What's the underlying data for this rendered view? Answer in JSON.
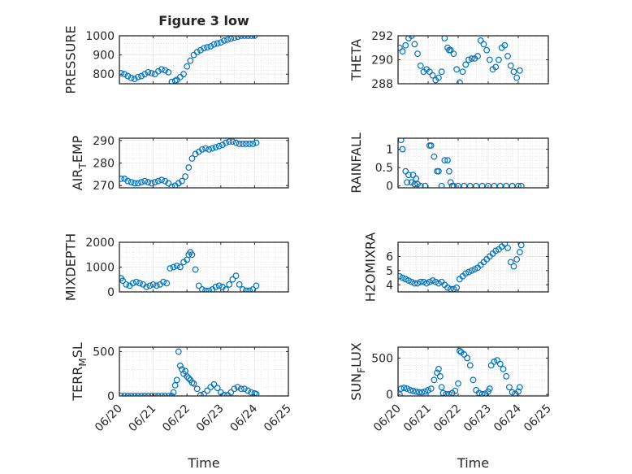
{
  "figure": {
    "title": "Figure 3 low"
  },
  "chart_data": [
    {
      "type": "scatter",
      "position": "top-left",
      "ylabel": "PRESSURE",
      "ylim": [
        750,
        1000
      ],
      "yticks": [
        800,
        900,
        1000
      ],
      "xlim": [
        0,
        5
      ],
      "color": "#0072BD",
      "x": [
        0.05,
        0.15,
        0.25,
        0.35,
        0.45,
        0.55,
        0.65,
        0.75,
        0.85,
        0.95,
        1.05,
        1.15,
        1.25,
        1.35,
        1.45,
        1.55,
        1.65,
        1.7,
        1.8,
        1.9,
        2.0,
        2.1,
        2.2,
        2.3,
        2.4,
        2.5,
        2.6,
        2.7,
        2.8,
        2.9,
        3.0,
        3.1,
        3.2,
        3.3,
        3.4,
        3.5,
        3.6,
        3.7,
        3.8,
        3.9,
        4.0
      ],
      "y": [
        805,
        800,
        790,
        780,
        775,
        785,
        790,
        800,
        810,
        805,
        800,
        815,
        825,
        820,
        810,
        760,
        765,
        770,
        785,
        800,
        840,
        870,
        900,
        915,
        925,
        935,
        940,
        945,
        955,
        960,
        965,
        975,
        980,
        985,
        990,
        995,
        1000,
        1000,
        1000,
        1000,
        1000
      ]
    },
    {
      "type": "scatter",
      "position": "top-right",
      "ylabel": "THETA",
      "ylim": [
        288,
        292
      ],
      "yticks": [
        288,
        290,
        292
      ],
      "xlim": [
        0,
        5
      ],
      "color": "#0072BD",
      "x": [
        0.05,
        0.15,
        0.25,
        0.35,
        0.45,
        0.55,
        0.65,
        0.75,
        0.85,
        0.95,
        1.05,
        1.15,
        1.25,
        1.35,
        1.45,
        1.55,
        1.65,
        1.7,
        1.75,
        1.85,
        1.95,
        2.05,
        2.15,
        2.25,
        2.35,
        2.45,
        2.55,
        2.65,
        2.75,
        2.85,
        2.95,
        3.05,
        3.15,
        3.25,
        3.35,
        3.45,
        3.55,
        3.65,
        3.75,
        3.85,
        3.95,
        4.05
      ],
      "y": [
        291,
        290.7,
        291.2,
        291.8,
        292,
        291.3,
        290.5,
        289.5,
        289,
        289.2,
        289,
        288.7,
        288.3,
        288.5,
        289,
        291.8,
        291,
        290.8,
        290.8,
        290.5,
        289.2,
        288.1,
        289,
        289.6,
        290,
        290.1,
        290.1,
        290.3,
        291.6,
        291.3,
        290.8,
        290,
        289.2,
        289.4,
        290,
        291,
        291.2,
        290.3,
        289.5,
        289,
        288.5,
        289.1
      ]
    },
    {
      "type": "scatter",
      "position": "second-left",
      "ylabel": "AIR_TEMP",
      "ylim": [
        269,
        291
      ],
      "yticks": [
        270,
        280,
        290
      ],
      "xlim": [
        0,
        5
      ],
      "color": "#0072BD",
      "x": [
        0.05,
        0.15,
        0.25,
        0.35,
        0.45,
        0.55,
        0.65,
        0.75,
        0.85,
        0.95,
        1.05,
        1.15,
        1.25,
        1.35,
        1.45,
        1.55,
        1.65,
        1.75,
        1.85,
        1.95,
        2.05,
        2.15,
        2.25,
        2.35,
        2.45,
        2.55,
        2.65,
        2.75,
        2.85,
        2.95,
        3.05,
        3.15,
        3.25,
        3.35,
        3.45,
        3.55,
        3.65,
        3.75,
        3.85,
        3.95,
        4.05
      ],
      "y": [
        273,
        273,
        272,
        271.5,
        271,
        271,
        271.5,
        272,
        271.5,
        271,
        271.5,
        272,
        272.5,
        272,
        271,
        269.5,
        270,
        271,
        272,
        274,
        278,
        282,
        284,
        285,
        286,
        286.5,
        286,
        286.5,
        287,
        287.5,
        288,
        289,
        289.5,
        289.5,
        289,
        288.5,
        288.5,
        288.5,
        288.5,
        288.5,
        289
      ]
    },
    {
      "type": "scatter",
      "position": "second-right",
      "ylabel": "RAINFALL",
      "ylim": [
        -0.05,
        1.3
      ],
      "yticks": [
        0,
        0.5,
        1
      ],
      "xlim": [
        0,
        5
      ],
      "color": "#0072BD",
      "x": [
        0.1,
        0.15,
        0.25,
        0.3,
        0.35,
        0.45,
        0.5,
        0.55,
        0.6,
        0.65,
        0.75,
        0.9,
        1.05,
        1.1,
        1.2,
        1.3,
        1.35,
        1.45,
        1.55,
        1.65,
        1.7,
        1.75,
        1.8,
        1.85,
        2.0,
        2.2,
        2.4,
        2.6,
        2.8,
        3.0,
        3.2,
        3.4,
        3.6,
        3.8,
        4.0,
        4.1
      ],
      "y": [
        1.25,
        1.0,
        0.4,
        0.1,
        0.3,
        0.1,
        0.3,
        0.05,
        0.2,
        0.05,
        0,
        0,
        1.1,
        1.1,
        0.8,
        0.4,
        0.4,
        0,
        0.7,
        0.7,
        0.4,
        0.1,
        0,
        0,
        0,
        0,
        0,
        0,
        0,
        0,
        0,
        0,
        0,
        0,
        0,
        0
      ]
    },
    {
      "type": "scatter",
      "position": "third-left",
      "ylabel": "MIXDEPTH",
      "ylim": [
        0,
        2000
      ],
      "yticks": [
        0,
        1000,
        2000
      ],
      "xlim": [
        0,
        5
      ],
      "color": "#0072BD",
      "x": [
        0.05,
        0.1,
        0.2,
        0.3,
        0.4,
        0.5,
        0.6,
        0.7,
        0.8,
        0.9,
        1.0,
        1.1,
        1.2,
        1.3,
        1.4,
        1.5,
        1.6,
        1.7,
        1.8,
        1.9,
        2.0,
        2.05,
        2.1,
        2.15,
        2.25,
        2.35,
        2.45,
        2.55,
        2.65,
        2.75,
        2.85,
        2.95,
        3.05,
        3.15,
        3.25,
        3.35,
        3.45,
        3.55,
        3.65,
        3.75,
        3.85,
        3.95,
        4.05
      ],
      "y": [
        550,
        450,
        300,
        250,
        350,
        400,
        350,
        300,
        200,
        250,
        300,
        250,
        300,
        400,
        350,
        950,
        1000,
        1050,
        1000,
        1200,
        1300,
        1500,
        1600,
        1500,
        900,
        250,
        100,
        50,
        50,
        100,
        200,
        250,
        200,
        100,
        300,
        500,
        650,
        300,
        100,
        50,
        50,
        100,
        250
      ]
    },
    {
      "type": "scatter",
      "position": "third-right",
      "ylabel": "H2OMIXRA",
      "ylim": [
        3.5,
        7
      ],
      "yticks": [
        4,
        5,
        6
      ],
      "xlim": [
        0,
        5
      ],
      "color": "#0072BD",
      "x": [
        0.05,
        0.15,
        0.25,
        0.35,
        0.45,
        0.55,
        0.65,
        0.75,
        0.85,
        0.95,
        1.05,
        1.15,
        1.25,
        1.35,
        1.45,
        1.55,
        1.65,
        1.75,
        1.85,
        1.95,
        2.05,
        2.15,
        2.25,
        2.35,
        2.45,
        2.55,
        2.65,
        2.75,
        2.85,
        2.95,
        3.05,
        3.15,
        3.25,
        3.35,
        3.45,
        3.55,
        3.65,
        3.75,
        3.85,
        3.95,
        4.05,
        4.1
      ],
      "y": [
        4.6,
        4.5,
        4.4,
        4.3,
        4.2,
        4.1,
        4.1,
        4.2,
        4.2,
        4.1,
        4.2,
        4.3,
        4.2,
        4.1,
        4.2,
        4.0,
        3.8,
        3.7,
        3.7,
        3.8,
        4.4,
        4.6,
        4.8,
        4.9,
        5.0,
        5.1,
        5.2,
        5.4,
        5.6,
        5.8,
        6.0,
        6.2,
        6.4,
        6.5,
        6.7,
        6.9,
        6.6,
        5.6,
        5.3,
        5.8,
        6.3,
        6.8
      ]
    },
    {
      "type": "scatter",
      "position": "bottom-left",
      "ylabel": "TERR_MSL",
      "ylim": [
        0,
        550
      ],
      "yticks": [
        0,
        500
      ],
      "xlim": [
        0,
        5
      ],
      "xticklabels": [
        "06/20",
        "06/21",
        "06/22",
        "06/23",
        "06/24",
        "06/25"
      ],
      "xlabel": "Time",
      "color": "#0072BD",
      "x": [
        0.05,
        0.15,
        0.25,
        0.35,
        0.45,
        0.55,
        0.65,
        0.75,
        0.85,
        0.95,
        1.05,
        1.15,
        1.25,
        1.35,
        1.45,
        1.55,
        1.6,
        1.65,
        1.7,
        1.75,
        1.8,
        1.85,
        1.9,
        1.95,
        2.0,
        2.05,
        2.1,
        2.15,
        2.2,
        2.3,
        2.4,
        2.5,
        2.6,
        2.7,
        2.8,
        2.9,
        3.0,
        3.1,
        3.2,
        3.3,
        3.4,
        3.5,
        3.6,
        3.7,
        3.8,
        3.9,
        4.0,
        4.05
      ],
      "y": [
        0,
        0,
        0,
        0,
        0,
        0,
        0,
        0,
        0,
        0,
        0,
        0,
        0,
        0,
        0,
        0,
        40,
        120,
        180,
        500,
        340,
        300,
        250,
        280,
        220,
        200,
        180,
        150,
        140,
        80,
        10,
        20,
        60,
        100,
        130,
        90,
        40,
        10,
        10,
        40,
        80,
        100,
        80,
        80,
        60,
        40,
        30,
        20
      ]
    },
    {
      "type": "scatter",
      "position": "bottom-right",
      "ylabel": "SUN_FLUX",
      "ylim": [
        -20,
        650
      ],
      "yticks": [
        0,
        500
      ],
      "xlim": [
        0,
        5
      ],
      "xticklabels": [
        "06/20",
        "06/21",
        "06/22",
        "06/23",
        "06/24",
        "06/25"
      ],
      "xlabel": "Time",
      "color": "#0072BD",
      "x": [
        0.05,
        0.1,
        0.2,
        0.3,
        0.4,
        0.5,
        0.6,
        0.7,
        0.8,
        0.9,
        1.0,
        1.1,
        1.2,
        1.3,
        1.35,
        1.4,
        1.45,
        1.5,
        1.6,
        1.7,
        1.8,
        1.9,
        2.0,
        2.05,
        2.1,
        2.2,
        2.3,
        2.4,
        2.5,
        2.6,
        2.7,
        2.8,
        2.9,
        3.0,
        3.05,
        3.1,
        3.2,
        3.3,
        3.4,
        3.5,
        3.6,
        3.7,
        3.8,
        3.9,
        4.0,
        4.05
      ],
      "y": [
        0,
        80,
        90,
        80,
        60,
        50,
        40,
        30,
        30,
        40,
        60,
        80,
        200,
        300,
        350,
        250,
        100,
        20,
        5,
        5,
        20,
        50,
        150,
        600,
        580,
        550,
        500,
        400,
        200,
        60,
        20,
        5,
        10,
        40,
        80,
        400,
        450,
        470,
        420,
        350,
        250,
        100,
        30,
        10,
        40,
        100
      ]
    }
  ]
}
